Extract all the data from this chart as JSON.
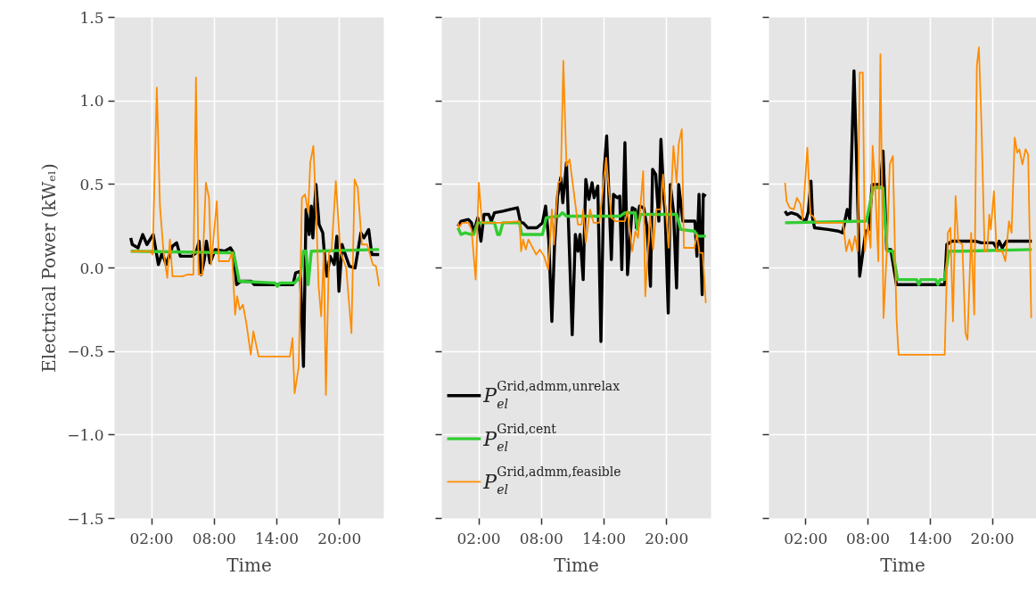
{
  "chart_data": [
    {
      "type": "line",
      "xlabel": "Time",
      "ylabel": "Electrical Power (kWₑₗ)",
      "grid": true,
      "xlim": [
        -1.55,
        24.25
      ],
      "xticks": [
        {
          "value": 2,
          "label": "02:00"
        },
        {
          "value": 8,
          "label": "08:00"
        },
        {
          "value": 14,
          "label": "14:00"
        },
        {
          "value": 20,
          "label": "20:00"
        }
      ],
      "ylim": [
        -1.5,
        1.5
      ],
      "yticks": [
        {
          "value": -1.5,
          "label": "−1.5"
        },
        {
          "value": -1.0,
          "label": "−1.0"
        },
        {
          "value": -0.5,
          "label": "−0.5"
        },
        {
          "value": 0.0,
          "label": "0.0"
        },
        {
          "value": 0.5,
          "label": "0.5"
        },
        {
          "value": 1.0,
          "label": "1.0"
        },
        {
          "value": 1.5,
          "label": "1.5"
        }
      ],
      "series": [
        {
          "color": "#000000",
          "x": [
            0,
            0.15,
            0.7,
            1.15,
            1.55,
            2.15,
            2.65,
            3.0,
            3.4,
            4.0,
            4.4,
            4.75,
            5.85,
            6.25,
            6.55,
            6.75,
            7.05,
            7.25,
            7.6,
            8.1,
            9.0,
            9.55,
            9.85,
            10.15,
            10.55,
            11.55,
            11.85,
            15.55,
            15.8,
            16.25,
            16.55,
            16.8,
            17.1,
            17.3,
            17.45,
            17.75,
            18.05,
            18.4,
            18.6,
            18.8,
            19.1,
            19.5,
            19.75,
            19.95,
            20.25,
            20.5,
            20.95,
            21.5,
            22.05,
            22.35,
            22.8,
            23.1,
            23.8
          ],
          "values": [
            0.18,
            0.14,
            0.12,
            0.2,
            0.14,
            0.2,
            0.02,
            0.09,
            0.02,
            0.13,
            0.15,
            0.07,
            0.07,
            0.09,
            0.16,
            -0.04,
            0.05,
            0.16,
            0.03,
            0.11,
            0.1,
            0.12,
            0.09,
            -0.1,
            -0.08,
            -0.08,
            -0.1,
            -0.1,
            -0.03,
            -0.02,
            -0.59,
            0.35,
            0.2,
            0.37,
            0.18,
            0.5,
            0.26,
            0.21,
            0.05,
            -0.05,
            0.07,
            0.02,
            0.19,
            -0.14,
            0.14,
            0.09,
            0.01,
            0.0,
            0.21,
            0.18,
            0.23,
            0.08,
            0.08
          ]
        },
        {
          "color": "#32cd32",
          "x": [
            0,
            9.85,
            10.4,
            13.8,
            14.05,
            14.3,
            15.7,
            16.25,
            16.55,
            16.8,
            17.0,
            17.3,
            23.8
          ],
          "values": [
            0.1,
            0.09,
            -0.08,
            -0.09,
            -0.11,
            -0.09,
            -0.09,
            -0.05,
            0.1,
            0.1,
            -0.1,
            0.1,
            0.11
          ]
        },
        {
          "color": "#ff8c00",
          "x": [
            0,
            1.85,
            2.1,
            2.5,
            2.8,
            3.15,
            3.5,
            3.75,
            4.0,
            5.0,
            5.4,
            6.0,
            6.25,
            6.5,
            6.85,
            7.2,
            7.5,
            7.7,
            8.25,
            8.45,
            9.4,
            9.7,
            10.0,
            10.2,
            10.45,
            10.75,
            11.1,
            11.5,
            11.75,
            12.25,
            15.25,
            15.5,
            15.7,
            16.1,
            16.4,
            16.7,
            17.0,
            17.2,
            17.5,
            17.8,
            18.0,
            18.25,
            18.5,
            18.7,
            19.0,
            19.25,
            19.65,
            20.1,
            20.65,
            21.15,
            21.45,
            21.75,
            22.15,
            22.65,
            23.2,
            23.5,
            23.8
          ],
          "values": [
            0.1,
            0.1,
            0.08,
            1.08,
            0.37,
            0.09,
            -0.06,
            0.17,
            -0.05,
            -0.05,
            -0.04,
            -0.04,
            1.14,
            -0.04,
            -0.04,
            0.51,
            0.42,
            0.02,
            0.4,
            0.04,
            0.04,
            0.09,
            -0.28,
            -0.17,
            -0.25,
            -0.22,
            -0.34,
            -0.52,
            -0.38,
            -0.53,
            -0.53,
            -0.42,
            -0.75,
            -0.59,
            0.42,
            0.44,
            0.33,
            0.63,
            0.73,
            0.28,
            -0.11,
            -0.29,
            0.1,
            -0.76,
            0.09,
            0.11,
            0.52,
            0.09,
            0.0,
            -0.39,
            0.53,
            0.48,
            0.14,
            0.14,
            0.02,
            0.01,
            -0.11
          ]
        }
      ]
    },
    {
      "type": "line",
      "xlabel": "Time",
      "grid": true,
      "tick_labels": "x",
      "legend": "bottom left",
      "xlim": [
        -1.55,
        24.25
      ],
      "xticks": [
        {
          "value": 2,
          "label": "02:00"
        },
        {
          "value": 8,
          "label": "08:00"
        },
        {
          "value": 14,
          "label": "14:00"
        },
        {
          "value": 20,
          "label": "20:00"
        }
      ],
      "ylim": [
        -1.5,
        1.5
      ],
      "yticks": [
        {
          "value": -1.5,
          "label": null
        },
        {
          "value": -1.0,
          "label": null
        },
        {
          "value": -0.5,
          "label": null
        },
        {
          "value": 0.0,
          "label": null
        },
        {
          "value": 0.5,
          "label": null
        },
        {
          "value": 1.0,
          "label": null
        },
        {
          "value": 1.5,
          "label": null
        }
      ],
      "series": [
        {
          "name": "P$^{Grid,admm,unrelax}$$_{el}$",
          "color": "#000000",
          "x": [
            0,
            0.3,
            1.0,
            1.3,
            1.5,
            1.9,
            2.2,
            2.5,
            2.95,
            3.2,
            3.5,
            4.3,
            5.0,
            5.7,
            6.0,
            6.25,
            6.7,
            7.55,
            8.1,
            8.4,
            8.7,
            9.0,
            9.25,
            9.55,
            9.85,
            10.05,
            10.4,
            10.95,
            11.25,
            11.5,
            11.7,
            12.0,
            12.25,
            12.55,
            12.85,
            13.05,
            13.4,
            13.7,
            14.0,
            14.25,
            14.7,
            14.9,
            15.25,
            15.5,
            15.7,
            16.0,
            16.25,
            16.7,
            17.0,
            17.1,
            17.4,
            17.8,
            18.1,
            18.45,
            18.65,
            18.95,
            19.25,
            19.45,
            19.75,
            19.85,
            20.15,
            20.35,
            20.65,
            20.95,
            21.15,
            21.55,
            22.7,
            22.9,
            23.1,
            23.4,
            23.5,
            23.75
          ],
          "values": [
            0.25,
            0.28,
            0.29,
            0.27,
            0.21,
            0.3,
            0.16,
            0.32,
            0.32,
            0.28,
            0.33,
            0.34,
            0.35,
            0.36,
            0.27,
            0.27,
            0.24,
            0.24,
            0.27,
            0.37,
            0.17,
            -0.32,
            0.13,
            0.43,
            0.54,
            0.39,
            0.63,
            -0.4,
            0.2,
            0.1,
            0.2,
            -0.07,
            0.53,
            0.41,
            0.51,
            0.42,
            0.49,
            -0.44,
            0.57,
            0.79,
            0.05,
            0.44,
            0.42,
            0.43,
            -0.01,
            0.75,
            -0.04,
            0.36,
            0.35,
            0.24,
            0.37,
            0.36,
            0.25,
            -0.11,
            0.59,
            0.56,
            0.28,
            0.77,
            0.41,
            0.34,
            -0.27,
            0.5,
            0.34,
            -0.12,
            0.5,
            0.28,
            0.28,
            0.07,
            0.44,
            -0.16,
            0.44,
            0.43
          ]
        },
        {
          "name": "P$^{Grid,cent}$$_{el}$",
          "color": "#32cd32",
          "x": [
            0,
            0.3,
            0.7,
            1.3,
            1.5,
            1.9,
            3.5,
            3.8,
            4.0,
            4.3,
            5.9,
            6.1,
            8.1,
            8.45,
            9.7,
            10.0,
            10.4,
            15.55,
            16.0,
            17.0,
            17.2,
            17.5,
            20.95,
            21.35,
            22.65,
            23.0,
            23.75
          ],
          "values": [
            0.24,
            0.2,
            0.21,
            0.2,
            0.2,
            0.27,
            0.27,
            0.2,
            0.2,
            0.27,
            0.27,
            0.2,
            0.2,
            0.3,
            0.31,
            0.33,
            0.31,
            0.31,
            0.33,
            0.33,
            0.23,
            0.32,
            0.32,
            0.23,
            0.22,
            0.19,
            0.19
          ]
        },
        {
          "name": "P$^{Grid,admm,feasible}$$_{el}$",
          "color": "#ff8c00",
          "x": [
            0,
            0.1,
            0.4,
            1.0,
            1.3,
            1.7,
            2.0,
            2.3,
            4.15,
            5.9,
            6.05,
            6.25,
            6.5,
            6.75,
            7.5,
            7.85,
            8.25,
            8.65,
            9.0,
            9.2,
            9.6,
            9.85,
            10.1,
            10.4,
            10.7,
            11.5,
            11.85,
            12.0,
            12.25,
            12.65,
            13.0,
            13.55,
            14.2,
            14.7,
            15.1,
            16.0,
            16.25,
            16.7,
            17.0,
            17.25,
            17.75,
            17.95,
            18.4,
            18.7,
            19.0,
            19.45,
            19.65,
            20.2,
            20.65,
            20.95,
            21.15,
            21.45,
            21.65,
            22.65,
            22.9,
            23.15,
            23.45,
            23.75
          ],
          "values": [
            0.27,
            0.24,
            0.27,
            0.27,
            0.23,
            -0.07,
            0.51,
            0.27,
            0.27,
            0.28,
            0.1,
            0.17,
            0.11,
            0.17,
            0.08,
            0.11,
            0.07,
            -0.01,
            0.35,
            0.14,
            0.51,
            0.52,
            1.24,
            0.61,
            0.65,
            0.26,
            0.26,
            0.35,
            0.15,
            0.35,
            0.27,
            0.27,
            0.66,
            0.3,
            0.28,
            0.28,
            0.34,
            0.1,
            0.22,
            0.18,
            0.58,
            -0.17,
            0.32,
            0.11,
            0.35,
            0.35,
            0.56,
            0.12,
            0.73,
            0.51,
            0.74,
            0.83,
            0.12,
            0.12,
            0.2,
            0.09,
            0.09,
            -0.21
          ]
        }
      ]
    },
    {
      "type": "line",
      "xlabel": "Time",
      "grid": true,
      "tick_labels": "x",
      "xlim": [
        -1.55,
        24.25
      ],
      "xticks": [
        {
          "value": 2,
          "label": "02:00"
        },
        {
          "value": 8,
          "label": "08:00"
        },
        {
          "value": 14,
          "label": "14:00"
        },
        {
          "value": 20,
          "label": "20:00"
        }
      ],
      "ylim": [
        -1.5,
        1.5
      ],
      "yticks": [
        {
          "value": -1.5,
          "label": null
        },
        {
          "value": -1.0,
          "label": null
        },
        {
          "value": -0.5,
          "label": null
        },
        {
          "value": 0.0,
          "label": null
        },
        {
          "value": 0.5,
          "label": null
        },
        {
          "value": 1.0,
          "label": null
        },
        {
          "value": 1.5,
          "label": null
        }
      ],
      "series": [
        {
          "color": "#000000",
          "x": [
            0,
            0.2,
            0.6,
            1.15,
            1.5,
            1.8,
            2.0,
            2.25,
            2.5,
            2.65,
            2.85,
            4.15,
            5.15,
            5.55,
            5.8,
            6.0,
            6.25,
            6.65,
            6.95,
            7.2,
            7.5,
            7.8,
            8.1,
            8.4,
            9.2,
            9.45,
            9.8,
            10.2,
            10.75,
            15.4,
            15.6,
            16.1,
            18.4,
            18.95,
            20.1,
            20.4,
            20.65,
            20.95,
            21.35,
            23.8
          ],
          "values": [
            0.34,
            0.32,
            0.33,
            0.32,
            0.3,
            0.29,
            0.28,
            0.34,
            0.52,
            0.3,
            0.24,
            0.23,
            0.22,
            0.21,
            0.29,
            0.35,
            0.29,
            1.18,
            0.53,
            -0.05,
            0.09,
            0.22,
            0.23,
            0.5,
            0.5,
            0.7,
            0.11,
            0.11,
            -0.1,
            -0.1,
            0.14,
            0.16,
            0.16,
            0.15,
            0.15,
            0.12,
            0.16,
            0.12,
            0.16,
            0.16
          ]
        },
        {
          "color": "#32cd32",
          "x": [
            0,
            7.85,
            8.5,
            9.45,
            9.85,
            10.4,
            10.85,
            12.7,
            12.9,
            13.1,
            14.55,
            14.75,
            14.95,
            15.4,
            15.8,
            17.0,
            23.8
          ],
          "values": [
            0.27,
            0.28,
            0.48,
            0.48,
            0.1,
            0.1,
            -0.07,
            -0.07,
            -0.1,
            -0.07,
            -0.07,
            -0.1,
            -0.07,
            -0.07,
            0.1,
            0.1,
            0.11
          ]
        },
        {
          "color": "#ff8c00",
          "x": [
            0,
            0.15,
            0.45,
            0.85,
            1.15,
            1.5,
            1.7,
            2.15,
            2.45,
            2.7,
            3.05,
            5.6,
            5.9,
            6.2,
            6.45,
            6.75,
            7.0,
            7.2,
            7.5,
            7.7,
            8.0,
            8.25,
            8.45,
            8.7,
            9.0,
            9.2,
            9.5,
            9.85,
            10.1,
            10.4,
            10.75,
            10.95,
            15.4,
            15.7,
            15.95,
            16.2,
            16.45,
            16.7,
            17.1,
            17.4,
            17.6,
            17.95,
            18.25,
            18.5,
            18.7,
            18.95,
            19.25,
            19.5,
            19.7,
            19.85,
            20.15,
            20.4,
            20.95,
            21.25,
            21.6,
            21.85,
            22.15,
            22.4,
            22.6,
            22.9,
            23.2,
            23.45,
            23.75
          ],
          "values": [
            0.51,
            0.4,
            0.36,
            0.35,
            0.42,
            0.38,
            0.29,
            0.72,
            0.32,
            0.31,
            0.27,
            0.27,
            0.1,
            0.17,
            0.1,
            0.19,
            0.1,
            1.17,
            1.17,
            0.1,
            0.26,
            0.12,
            0.73,
            0.48,
            0.04,
            1.28,
            -0.3,
            0.14,
            0.62,
            0.67,
            -0.3,
            -0.52,
            -0.52,
            0.21,
            0.24,
            -0.32,
            0.43,
            0.16,
            0.14,
            -0.39,
            -0.43,
            0.21,
            -0.28,
            1.21,
            1.32,
            0.85,
            0.1,
            0.1,
            0.32,
            0.23,
            0.46,
            0.1,
            0.1,
            0.04,
            0.28,
            0.21,
            0.78,
            0.69,
            0.71,
            0.62,
            0.71,
            0.68,
            -0.3
          ]
        }
      ]
    }
  ]
}
